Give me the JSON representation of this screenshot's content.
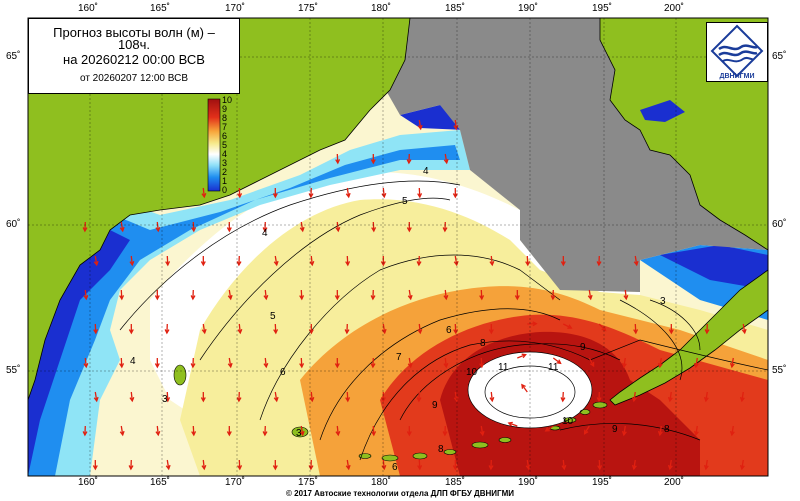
{
  "title": {
    "line1": "Прогноз высоты волн (м) –",
    "line1b": "108ч.",
    "line2": "на 20260212 00:00 ВСВ",
    "line3": "от 20260207 12:00 ВСВ"
  },
  "lon_labels": [
    "160˚",
    "165˚",
    "170˚",
    "175˚",
    "180˚",
    "185˚",
    "190˚",
    "195˚",
    "200˚"
  ],
  "lat_labels": [
    "65˚",
    "60˚",
    "55˚"
  ],
  "colorbar": [
    "10",
    "9",
    "8",
    "7",
    "6",
    "5",
    "4",
    "3",
    "2",
    "1",
    "0"
  ],
  "contour_labels": [
    "4",
    "5",
    "4",
    "5",
    "6",
    "7",
    "8",
    "9",
    "10",
    "11",
    "11",
    "9",
    "10",
    "9",
    "8",
    "6",
    "4",
    "3",
    "3",
    "8",
    "6",
    "3"
  ],
  "logo_text": "ДВНИГМИ",
  "copyright": "© 2017 Автоские технологии отдела ДЛП ФГБУ ДВНИГМИ",
  "colors": {
    "land": "#8fbf1f",
    "nodata": "#8a8a8a",
    "ocean_low": "#1f3fd8",
    "ocean_high": "#c81a10",
    "arrow": "#e02010"
  }
}
